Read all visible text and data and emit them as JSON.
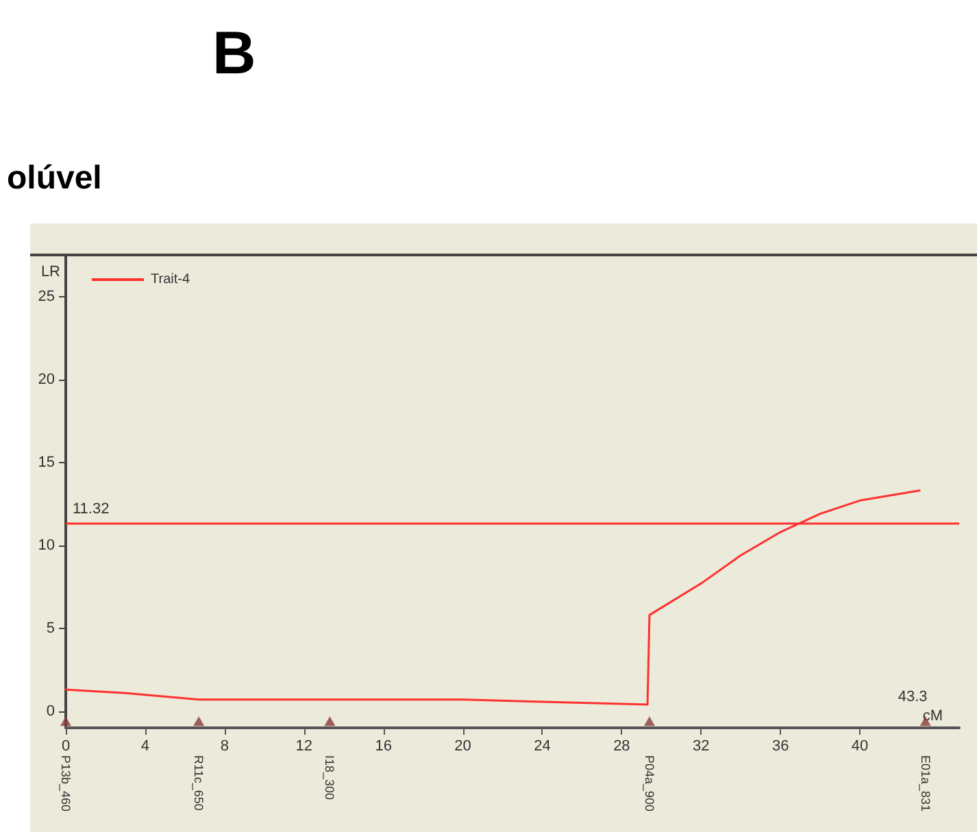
{
  "chart_data": {
    "type": "line",
    "title": "B",
    "subtitle": "olúvel",
    "xlabel": "cM",
    "ylabel": "LR",
    "xlim": [
      0,
      45
    ],
    "ylim": [
      -1,
      27.5
    ],
    "xticks": [
      0,
      4,
      8,
      12,
      16,
      20,
      24,
      28,
      32,
      36,
      40
    ],
    "yticks": [
      0,
      5,
      10,
      15,
      20,
      25
    ],
    "grid": false,
    "legend": "top left",
    "line_style": "solid",
    "series": [
      {
        "name": "Trait-4",
        "color": "#ff3030",
        "marker": "none",
        "x": [
          0,
          3,
          6.7,
          12,
          20,
          29.3,
          29.4,
          32,
          34,
          36,
          38,
          40,
          43
        ],
        "values": [
          1.3,
          1.1,
          0.7,
          0.7,
          0.7,
          0.4,
          5.8,
          7.7,
          9.4,
          10.8,
          11.9,
          12.7,
          13.3
        ]
      },
      {
        "type": "scatter",
        "color": "#8b3a3a",
        "marker": "triangle",
        "x": [
          0,
          6.7,
          13.3,
          29.4,
          43.3
        ],
        "values": [
          -0.6,
          -0.6,
          -0.6,
          -0.6,
          -0.6
        ]
      }
    ],
    "ref_lines": [
      {
        "axis": "y",
        "value": 11.32,
        "label": "11.32",
        "color": "#ff3030",
        "line_style": "solid"
      }
    ],
    "annotations": [
      {
        "text": "P13b_460",
        "x": 0,
        "y": -1
      },
      {
        "text": "R11c_650",
        "x": 6.7,
        "y": -1
      },
      {
        "text": "I18_300",
        "x": 13.3,
        "y": -1
      },
      {
        "text": "P04a_900",
        "x": 29.4,
        "y": -1
      },
      {
        "text": "E01a_831",
        "x": 43.3,
        "y": -1
      },
      {
        "text": "43.3",
        "x": 43.3,
        "y": 0
      }
    ]
  }
}
